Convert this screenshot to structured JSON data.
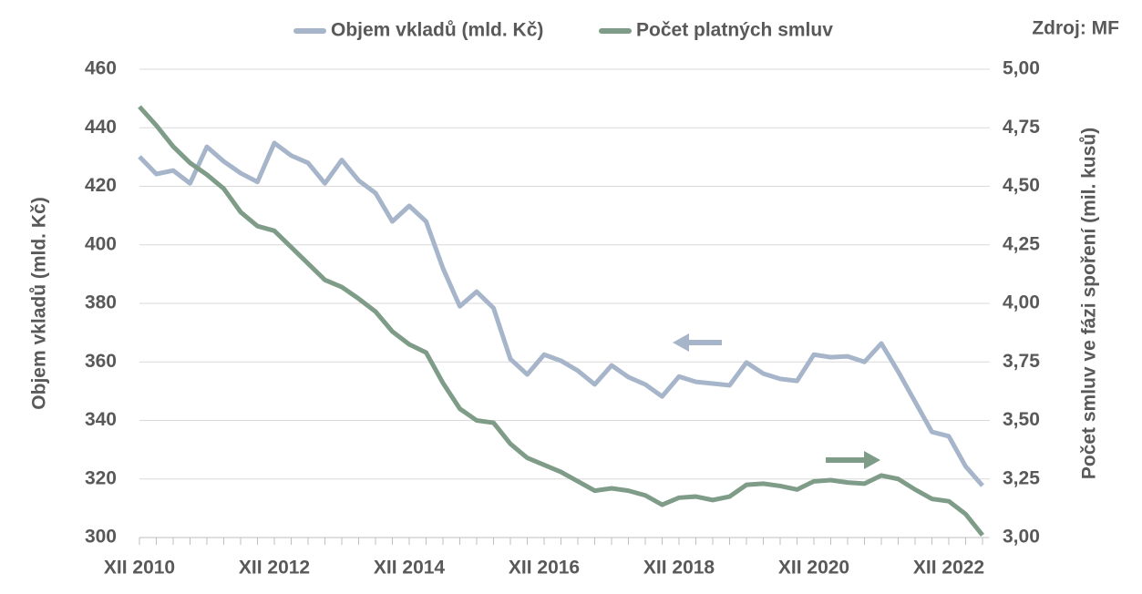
{
  "chart_data": {
    "type": "line",
    "source": "Zdroj: MF",
    "y_label": "Objem vkladů (mld. Kč)",
    "y2_label": "Počet smluv ve fázi spoření (mil. kusů)",
    "categories": [
      "XII 2010",
      null,
      null,
      null,
      null,
      null,
      null,
      null,
      "XII 2012",
      null,
      null,
      null,
      null,
      null,
      null,
      null,
      "XII 2014",
      null,
      null,
      null,
      null,
      null,
      null,
      null,
      "XII 2016",
      null,
      null,
      null,
      null,
      null,
      null,
      null,
      "XII 2018",
      null,
      null,
      null,
      null,
      null,
      null,
      null,
      "XII 2020",
      null,
      null,
      null,
      null,
      null,
      null,
      null,
      "XII 2022",
      null,
      null
    ],
    "series": [
      {
        "name": "Objem vkladů (mld. Kč)",
        "color": "#a6b5c9",
        "axis": "y",
        "values": [
          430.1,
          424.2,
          425.4,
          421,
          433.5,
          428.5,
          424.5,
          421.5,
          434.8,
          430.5,
          428,
          421,
          429,
          422,
          417.7,
          408,
          413.3,
          408,
          392,
          379,
          384,
          378.4,
          361,
          355.7,
          362.5,
          360.4,
          357,
          352.3,
          358.8,
          354.8,
          352.3,
          348.2,
          355,
          353.2,
          352.6,
          352,
          359.8,
          356,
          354.2,
          353.5,
          362.5,
          361.6,
          361.9,
          360,
          366.3,
          356.7,
          346.4,
          336.1,
          334.6,
          324.3,
          317.7
        ]
      },
      {
        "name": "Počet platných smluv",
        "color": "#7f9c88",
        "axis": "y2",
        "values": [
          4.84,
          4.76,
          4.67,
          4.6,
          4.55,
          4.49,
          4.39,
          4.33,
          4.31,
          4.24,
          4.17,
          4.1,
          4.07,
          4.02,
          3.965,
          3.88,
          3.825,
          3.79,
          3.66,
          3.55,
          3.5,
          3.49,
          3.4,
          3.34,
          3.31,
          3.28,
          3.24,
          3.2,
          3.21,
          3.2,
          3.18,
          3.14,
          3.17,
          3.175,
          3.16,
          3.175,
          3.225,
          3.23,
          3.22,
          3.205,
          3.24,
          3.245,
          3.235,
          3.23,
          3.265,
          3.25,
          3.205,
          3.165,
          3.155,
          3.1,
          3.01
        ]
      }
    ],
    "ylim": [
      300,
      460
    ],
    "yticks": [
      300,
      320,
      340,
      360,
      380,
      400,
      420,
      440,
      460
    ],
    "y2lim": [
      3,
      5
    ],
    "y2ticks": [
      {
        "value": 3,
        "label": "3,00"
      },
      {
        "value": 3.25,
        "label": "3,25"
      },
      {
        "value": 3.5,
        "label": "3,50"
      },
      {
        "value": 3.75,
        "label": "3,75"
      },
      {
        "value": 4,
        "label": "4,00"
      },
      {
        "value": 4.25,
        "label": "4,25"
      },
      {
        "value": 4.5,
        "label": "4,50"
      },
      {
        "value": 4.75,
        "label": "4,75"
      },
      {
        "value": 5,
        "label": "5,00"
      }
    ],
    "grid": true,
    "legend": "top"
  }
}
